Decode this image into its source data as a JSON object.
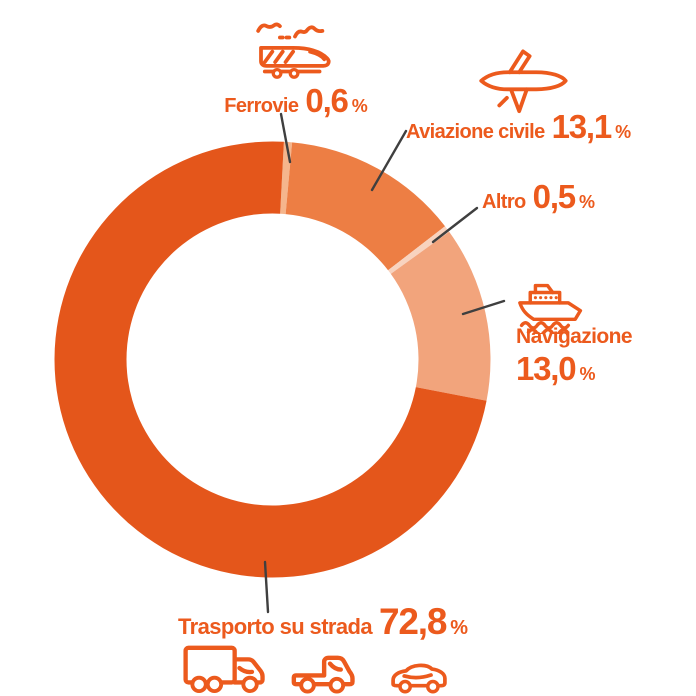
{
  "colors": {
    "accent_text": "#EC5A1D",
    "leader_line": "#3F3F3F",
    "background": "#FFFFFF"
  },
  "percent_sign": "%",
  "chart_data": {
    "type": "pie",
    "subtype": "donut",
    "unit": "%",
    "start_angle_deg": 3,
    "clockwise": true,
    "legend_position": "callouts-around-chart",
    "slices": [
      {
        "id": "ferrovie",
        "label": "Ferrovie",
        "value": 0.6,
        "display": "0,6",
        "color": "#F5B58C"
      },
      {
        "id": "aviazione-civile",
        "label": "Aviazione civile",
        "value": 13.1,
        "display": "13,1",
        "color": "#ED7E44"
      },
      {
        "id": "altro",
        "label": "Altro",
        "value": 0.5,
        "display": "0,5",
        "color": "#F8D3BF"
      },
      {
        "id": "navigazione",
        "label": "Navigazione",
        "value": 13.0,
        "display": "13,0",
        "color": "#F2A47C"
      },
      {
        "id": "trasporto-su-strada",
        "label": "Trasporto su strada",
        "value": 72.8,
        "display": "72,8",
        "color": "#E4561B"
      }
    ]
  },
  "callouts": {
    "ferrovie": {
      "label": "Ferrovie",
      "value": "0,6",
      "unit": "%"
    },
    "aviazione": {
      "label": "Aviazione civile",
      "value": "13,1",
      "unit": "%"
    },
    "altro": {
      "label": "Altro",
      "value": "0,5",
      "unit": "%"
    },
    "navigazione": {
      "label": "Navigazione",
      "value": "13,0",
      "unit": "%"
    },
    "trasporto": {
      "label": "Trasporto su strada",
      "value": "72,8",
      "unit": "%"
    }
  },
  "icons": [
    "train-icon",
    "airplane-icon",
    "ship-icon",
    "box-truck-icon",
    "pickup-truck-icon",
    "car-icon"
  ]
}
